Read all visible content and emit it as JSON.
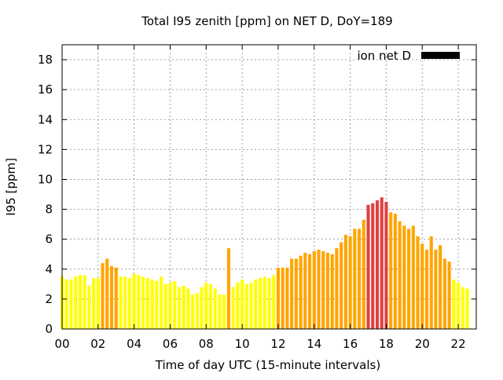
{
  "chart_data": {
    "type": "bar",
    "title": "Total I95 zenith [ppm] on NET D, DoY=189",
    "xlabel": "Time of day UTC (15-minute intervals)",
    "ylabel": "I95 [ppm]",
    "ylim": [
      0,
      19
    ],
    "xlim": [
      0,
      23
    ],
    "grid": true,
    "legend_placement": "top-right",
    "legend": [
      {
        "name": "ion net D",
        "color": "#000000"
      }
    ],
    "x_ticks": [
      {
        "value": 0,
        "label": "00"
      },
      {
        "value": 2,
        "label": "02"
      },
      {
        "value": 4,
        "label": "04"
      },
      {
        "value": 6,
        "label": "06"
      },
      {
        "value": 8,
        "label": "08"
      },
      {
        "value": 10,
        "label": "10"
      },
      {
        "value": 12,
        "label": "12"
      },
      {
        "value": 14,
        "label": "14"
      },
      {
        "value": 16,
        "label": "16"
      },
      {
        "value": 18,
        "label": "18"
      },
      {
        "value": 20,
        "label": "20"
      },
      {
        "value": 22,
        "label": "22"
      }
    ],
    "y_ticks": [
      {
        "value": 0,
        "label": "0"
      },
      {
        "value": 2,
        "label": "2"
      },
      {
        "value": 4,
        "label": "4"
      },
      {
        "value": 6,
        "label": "6"
      },
      {
        "value": 8,
        "label": "8"
      },
      {
        "value": 10,
        "label": "10"
      },
      {
        "value": 12,
        "label": "12"
      },
      {
        "value": 14,
        "label": "14"
      },
      {
        "value": 16,
        "label": "16"
      },
      {
        "value": 18,
        "label": "18"
      }
    ],
    "level_colors": {
      "low": "#ffff00",
      "medium": "#ffa500",
      "high": "#e04040"
    },
    "bar_interval_hours": 0.25,
    "bars": [
      {
        "t": 0.0,
        "v": 3.5,
        "level": "low"
      },
      {
        "t": 0.25,
        "v": 3.3,
        "level": "low"
      },
      {
        "t": 0.5,
        "v": 3.3,
        "level": "low"
      },
      {
        "t": 0.75,
        "v": 3.5,
        "level": "low"
      },
      {
        "t": 1.0,
        "v": 3.6,
        "level": "low"
      },
      {
        "t": 1.25,
        "v": 3.6,
        "level": "low"
      },
      {
        "t": 1.5,
        "v": 2.9,
        "level": "low"
      },
      {
        "t": 1.75,
        "v": 3.4,
        "level": "low"
      },
      {
        "t": 2.0,
        "v": 3.4,
        "level": "low"
      },
      {
        "t": 2.25,
        "v": 4.4,
        "level": "medium"
      },
      {
        "t": 2.5,
        "v": 4.7,
        "level": "medium"
      },
      {
        "t": 2.75,
        "v": 4.2,
        "level": "medium"
      },
      {
        "t": 3.0,
        "v": 4.1,
        "level": "medium"
      },
      {
        "t": 3.25,
        "v": 3.5,
        "level": "low"
      },
      {
        "t": 3.5,
        "v": 3.5,
        "level": "low"
      },
      {
        "t": 3.75,
        "v": 3.4,
        "level": "low"
      },
      {
        "t": 4.0,
        "v": 3.7,
        "level": "low"
      },
      {
        "t": 4.25,
        "v": 3.6,
        "level": "low"
      },
      {
        "t": 4.5,
        "v": 3.5,
        "level": "low"
      },
      {
        "t": 4.75,
        "v": 3.4,
        "level": "low"
      },
      {
        "t": 5.0,
        "v": 3.3,
        "level": "low"
      },
      {
        "t": 5.25,
        "v": 3.2,
        "level": "low"
      },
      {
        "t": 5.5,
        "v": 3.5,
        "level": "low"
      },
      {
        "t": 5.75,
        "v": 3.0,
        "level": "low"
      },
      {
        "t": 6.0,
        "v": 3.1,
        "level": "low"
      },
      {
        "t": 6.25,
        "v": 3.2,
        "level": "low"
      },
      {
        "t": 6.5,
        "v": 2.8,
        "level": "low"
      },
      {
        "t": 6.75,
        "v": 2.9,
        "level": "low"
      },
      {
        "t": 7.0,
        "v": 2.7,
        "level": "low"
      },
      {
        "t": 7.25,
        "v": 2.3,
        "level": "low"
      },
      {
        "t": 7.5,
        "v": 2.4,
        "level": "low"
      },
      {
        "t": 7.75,
        "v": 2.8,
        "level": "low"
      },
      {
        "t": 8.0,
        "v": 3.1,
        "level": "low"
      },
      {
        "t": 8.25,
        "v": 3.0,
        "level": "low"
      },
      {
        "t": 8.5,
        "v": 2.7,
        "level": "low"
      },
      {
        "t": 8.75,
        "v": 2.3,
        "level": "low"
      },
      {
        "t": 9.0,
        "v": 2.3,
        "level": "low"
      },
      {
        "t": 9.25,
        "v": 5.4,
        "level": "medium"
      },
      {
        "t": 9.5,
        "v": 2.8,
        "level": "low"
      },
      {
        "t": 9.75,
        "v": 3.1,
        "level": "low"
      },
      {
        "t": 10.0,
        "v": 3.3,
        "level": "low"
      },
      {
        "t": 10.25,
        "v": 3.0,
        "level": "low"
      },
      {
        "t": 10.5,
        "v": 3.1,
        "level": "low"
      },
      {
        "t": 10.75,
        "v": 3.3,
        "level": "low"
      },
      {
        "t": 11.0,
        "v": 3.4,
        "level": "low"
      },
      {
        "t": 11.25,
        "v": 3.5,
        "level": "low"
      },
      {
        "t": 11.5,
        "v": 3.4,
        "level": "low"
      },
      {
        "t": 11.75,
        "v": 3.6,
        "level": "low"
      },
      {
        "t": 12.0,
        "v": 4.1,
        "level": "medium"
      },
      {
        "t": 12.25,
        "v": 4.1,
        "level": "medium"
      },
      {
        "t": 12.5,
        "v": 4.1,
        "level": "medium"
      },
      {
        "t": 12.75,
        "v": 4.7,
        "level": "medium"
      },
      {
        "t": 13.0,
        "v": 4.7,
        "level": "medium"
      },
      {
        "t": 13.25,
        "v": 4.9,
        "level": "medium"
      },
      {
        "t": 13.5,
        "v": 5.1,
        "level": "medium"
      },
      {
        "t": 13.75,
        "v": 5.0,
        "level": "medium"
      },
      {
        "t": 14.0,
        "v": 5.2,
        "level": "medium"
      },
      {
        "t": 14.25,
        "v": 5.3,
        "level": "medium"
      },
      {
        "t": 14.5,
        "v": 5.2,
        "level": "medium"
      },
      {
        "t": 14.75,
        "v": 5.1,
        "level": "medium"
      },
      {
        "t": 15.0,
        "v": 5.0,
        "level": "medium"
      },
      {
        "t": 15.25,
        "v": 5.4,
        "level": "medium"
      },
      {
        "t": 15.5,
        "v": 5.8,
        "level": "medium"
      },
      {
        "t": 15.75,
        "v": 6.3,
        "level": "medium"
      },
      {
        "t": 16.0,
        "v": 6.2,
        "level": "medium"
      },
      {
        "t": 16.25,
        "v": 6.7,
        "level": "medium"
      },
      {
        "t": 16.5,
        "v": 6.7,
        "level": "medium"
      },
      {
        "t": 16.75,
        "v": 7.3,
        "level": "medium"
      },
      {
        "t": 17.0,
        "v": 8.3,
        "level": "high"
      },
      {
        "t": 17.25,
        "v": 8.4,
        "level": "high"
      },
      {
        "t": 17.5,
        "v": 8.6,
        "level": "high"
      },
      {
        "t": 17.75,
        "v": 8.8,
        "level": "high"
      },
      {
        "t": 18.0,
        "v": 8.5,
        "level": "high"
      },
      {
        "t": 18.25,
        "v": 7.8,
        "level": "medium"
      },
      {
        "t": 18.5,
        "v": 7.7,
        "level": "medium"
      },
      {
        "t": 18.75,
        "v": 7.2,
        "level": "medium"
      },
      {
        "t": 19.0,
        "v": 6.9,
        "level": "medium"
      },
      {
        "t": 19.25,
        "v": 6.7,
        "level": "medium"
      },
      {
        "t": 19.5,
        "v": 6.9,
        "level": "medium"
      },
      {
        "t": 19.75,
        "v": 6.2,
        "level": "medium"
      },
      {
        "t": 20.0,
        "v": 5.7,
        "level": "medium"
      },
      {
        "t": 20.25,
        "v": 5.3,
        "level": "medium"
      },
      {
        "t": 20.5,
        "v": 6.2,
        "level": "medium"
      },
      {
        "t": 20.75,
        "v": 5.3,
        "level": "medium"
      },
      {
        "t": 21.0,
        "v": 5.6,
        "level": "medium"
      },
      {
        "t": 21.25,
        "v": 4.7,
        "level": "medium"
      },
      {
        "t": 21.5,
        "v": 4.5,
        "level": "medium"
      },
      {
        "t": 21.75,
        "v": 3.3,
        "level": "low"
      },
      {
        "t": 22.0,
        "v": 3.1,
        "level": "low"
      },
      {
        "t": 22.25,
        "v": 2.8,
        "level": "low"
      },
      {
        "t": 22.5,
        "v": 2.7,
        "level": "low"
      }
    ]
  }
}
